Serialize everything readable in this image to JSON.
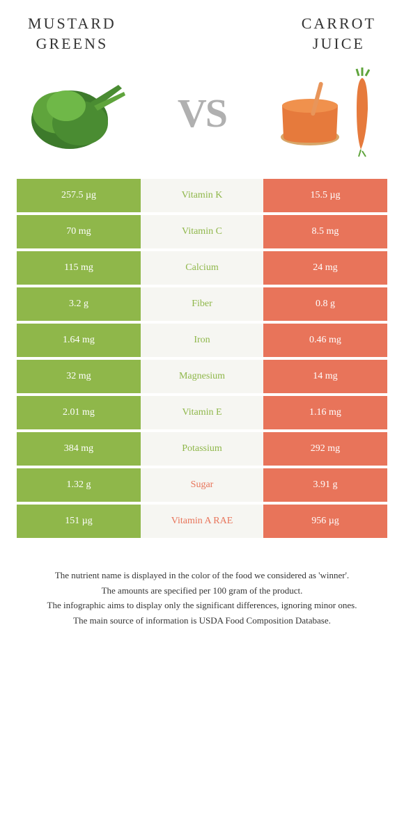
{
  "colors": {
    "green": "#8fb74a",
    "orange": "#e8745a",
    "midBg": "#f6f6f2",
    "textWhite": "#ffffff",
    "vsGray": "#b0b0b0"
  },
  "header": {
    "left": "MUSTARD\nGREENS",
    "right": "CARROT\nJUICE",
    "vs": "VS"
  },
  "rows": [
    {
      "left": "257.5 µg",
      "label": "Vitamin K",
      "right": "15.5 µg",
      "winner": "left"
    },
    {
      "left": "70 mg",
      "label": "Vitamin C",
      "right": "8.5 mg",
      "winner": "left"
    },
    {
      "left": "115 mg",
      "label": "Calcium",
      "right": "24 mg",
      "winner": "left"
    },
    {
      "left": "3.2 g",
      "label": "Fiber",
      "right": "0.8 g",
      "winner": "left"
    },
    {
      "left": "1.64 mg",
      "label": "Iron",
      "right": "0.46 mg",
      "winner": "left"
    },
    {
      "left": "32 mg",
      "label": "Magnesium",
      "right": "14 mg",
      "winner": "left"
    },
    {
      "left": "2.01 mg",
      "label": "Vitamin E",
      "right": "1.16 mg",
      "winner": "left"
    },
    {
      "left": "384 mg",
      "label": "Potassium",
      "right": "292 mg",
      "winner": "left"
    },
    {
      "left": "1.32 g",
      "label": "Sugar",
      "right": "3.91 g",
      "winner": "right"
    },
    {
      "left": "151 µg",
      "label": "Vitamin A RAE",
      "right": "956 µg",
      "winner": "right"
    }
  ],
  "footer": {
    "line1": "The nutrient name is displayed in the color of the food we considered as 'winner'.",
    "line2": "The amounts are specified per 100 gram of the product.",
    "line3": "The infographic aims to display only the significant differences, ignoring minor ones.",
    "line4": "The main source of information is USDA Food Composition Database."
  }
}
